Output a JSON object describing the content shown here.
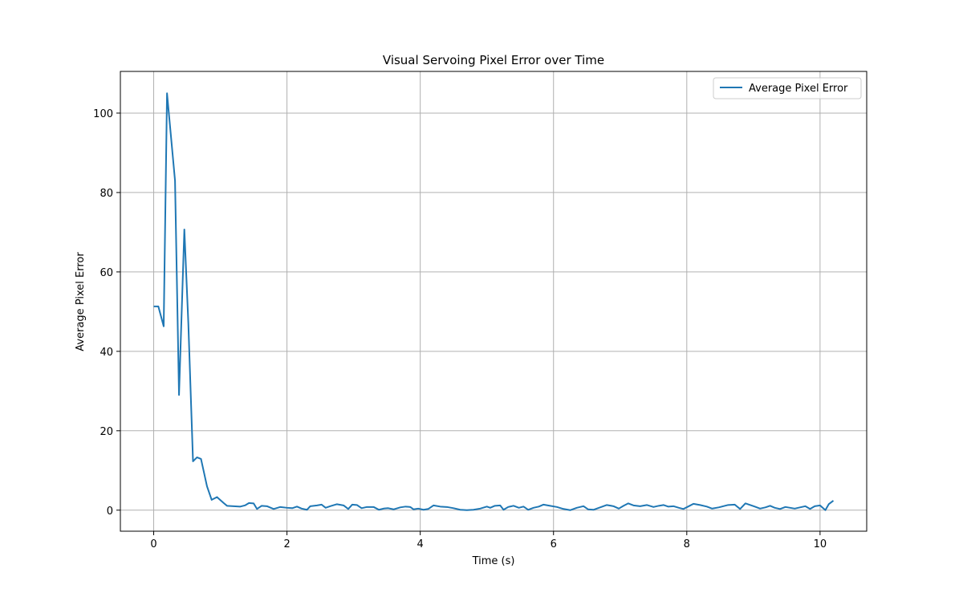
{
  "chart_data": {
    "type": "line",
    "title": "Visual Servoing Pixel Error over Time",
    "xlabel": "Time (s)",
    "ylabel": "Average Pixel Error",
    "xlim": [
      -0.5,
      10.7
    ],
    "ylim": [
      -5.3,
      110.5
    ],
    "xticks": [
      0,
      2,
      4,
      6,
      8,
      10
    ],
    "yticks": [
      0,
      20,
      40,
      60,
      80,
      100
    ],
    "grid": true,
    "legend_position": "top-right",
    "series": [
      {
        "name": "Average Pixel Error",
        "color": "#1f77b4",
        "points": [
          [
            0.0,
            51.3
          ],
          [
            0.07,
            51.3
          ],
          [
            0.15,
            46.3
          ],
          [
            0.2,
            105.0
          ],
          [
            0.32,
            83.0
          ],
          [
            0.38,
            29.0
          ],
          [
            0.46,
            70.7
          ],
          [
            0.52,
            47.0
          ],
          [
            0.59,
            12.3
          ],
          [
            0.65,
            13.3
          ],
          [
            0.71,
            12.9
          ],
          [
            0.8,
            6.0
          ],
          [
            0.87,
            2.6
          ],
          [
            0.95,
            3.3
          ],
          [
            1.05,
            1.8
          ],
          [
            1.1,
            1.1
          ],
          [
            1.2,
            1.0
          ],
          [
            1.3,
            0.9
          ],
          [
            1.37,
            1.2
          ],
          [
            1.43,
            1.8
          ],
          [
            1.5,
            1.7
          ],
          [
            1.55,
            0.3
          ],
          [
            1.62,
            1.1
          ],
          [
            1.7,
            1.0
          ],
          [
            1.8,
            0.3
          ],
          [
            1.9,
            0.8
          ],
          [
            2.0,
            0.6
          ],
          [
            2.08,
            0.5
          ],
          [
            2.15,
            0.9
          ],
          [
            2.22,
            0.4
          ],
          [
            2.3,
            0.1
          ],
          [
            2.35,
            1.0
          ],
          [
            2.45,
            1.2
          ],
          [
            2.52,
            1.4
          ],
          [
            2.58,
            0.6
          ],
          [
            2.65,
            1.0
          ],
          [
            2.75,
            1.5
          ],
          [
            2.85,
            1.2
          ],
          [
            2.92,
            0.3
          ],
          [
            2.98,
            1.4
          ],
          [
            3.05,
            1.3
          ],
          [
            3.12,
            0.5
          ],
          [
            3.2,
            0.8
          ],
          [
            3.3,
            0.8
          ],
          [
            3.38,
            0.1
          ],
          [
            3.45,
            0.4
          ],
          [
            3.52,
            0.5
          ],
          [
            3.6,
            0.2
          ],
          [
            3.7,
            0.7
          ],
          [
            3.78,
            0.9
          ],
          [
            3.85,
            0.8
          ],
          [
            3.9,
            0.2
          ],
          [
            3.97,
            0.4
          ],
          [
            4.05,
            0.1
          ],
          [
            4.12,
            0.3
          ],
          [
            4.2,
            1.2
          ],
          [
            4.3,
            0.9
          ],
          [
            4.4,
            0.8
          ],
          [
            4.5,
            0.5
          ],
          [
            4.6,
            0.1
          ],
          [
            4.7,
            0.0
          ],
          [
            4.8,
            0.1
          ],
          [
            4.9,
            0.4
          ],
          [
            5.0,
            0.9
          ],
          [
            5.05,
            0.6
          ],
          [
            5.12,
            1.1
          ],
          [
            5.2,
            1.2
          ],
          [
            5.25,
            0.1
          ],
          [
            5.32,
            0.8
          ],
          [
            5.4,
            1.1
          ],
          [
            5.48,
            0.6
          ],
          [
            5.55,
            0.9
          ],
          [
            5.62,
            0.1
          ],
          [
            5.7,
            0.6
          ],
          [
            5.78,
            0.9
          ],
          [
            5.85,
            1.4
          ],
          [
            5.95,
            1.1
          ],
          [
            6.05,
            0.8
          ],
          [
            6.15,
            0.3
          ],
          [
            6.25,
            0.0
          ],
          [
            6.35,
            0.6
          ],
          [
            6.45,
            1.0
          ],
          [
            6.52,
            0.2
          ],
          [
            6.6,
            0.1
          ],
          [
            6.7,
            0.7
          ],
          [
            6.8,
            1.3
          ],
          [
            6.9,
            1.0
          ],
          [
            6.98,
            0.4
          ],
          [
            7.05,
            1.1
          ],
          [
            7.12,
            1.7
          ],
          [
            7.2,
            1.2
          ],
          [
            7.3,
            1.0
          ],
          [
            7.4,
            1.3
          ],
          [
            7.5,
            0.8
          ],
          [
            7.58,
            1.1
          ],
          [
            7.65,
            1.3
          ],
          [
            7.72,
            0.9
          ],
          [
            7.8,
            1.0
          ],
          [
            7.88,
            0.6
          ],
          [
            7.95,
            0.3
          ],
          [
            8.02,
            0.9
          ],
          [
            8.1,
            1.6
          ],
          [
            8.2,
            1.3
          ],
          [
            8.3,
            0.9
          ],
          [
            8.38,
            0.4
          ],
          [
            8.48,
            0.7
          ],
          [
            8.55,
            1.0
          ],
          [
            8.62,
            1.3
          ],
          [
            8.72,
            1.4
          ],
          [
            8.8,
            0.3
          ],
          [
            8.88,
            1.7
          ],
          [
            8.95,
            1.3
          ],
          [
            9.02,
            0.9
          ],
          [
            9.1,
            0.4
          ],
          [
            9.18,
            0.7
          ],
          [
            9.25,
            1.1
          ],
          [
            9.32,
            0.6
          ],
          [
            9.4,
            0.3
          ],
          [
            9.48,
            0.8
          ],
          [
            9.55,
            0.6
          ],
          [
            9.62,
            0.4
          ],
          [
            9.7,
            0.7
          ],
          [
            9.78,
            1.0
          ],
          [
            9.85,
            0.3
          ],
          [
            9.92,
            1.0
          ],
          [
            10.0,
            1.2
          ],
          [
            10.08,
            0.0
          ],
          [
            10.13,
            1.5
          ],
          [
            10.2,
            2.4
          ]
        ]
      }
    ]
  }
}
